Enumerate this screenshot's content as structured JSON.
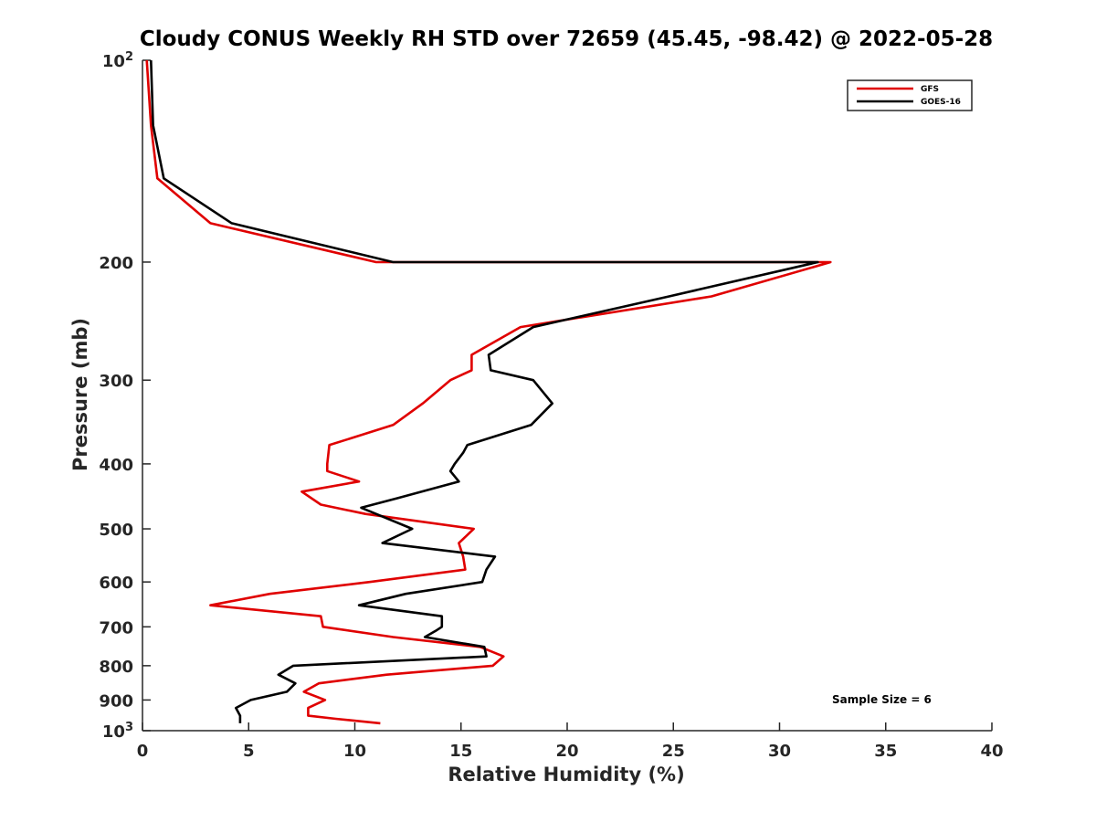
{
  "chart_data": {
    "type": "line",
    "title": "Cloudy CONUS Weekly RH STD over 72659 (45.45, -98.42) @ 2022-05-28",
    "xlabel": "Relative Humidity (%)",
    "ylabel": "Pressure (mb)",
    "xlim": [
      0,
      40
    ],
    "ylim": [
      100,
      1000
    ],
    "y_scale": "log",
    "y_reversed": true,
    "x_ticks": [
      "0",
      "5",
      "10",
      "15",
      "20",
      "25",
      "30",
      "35",
      "40"
    ],
    "y_ticks": [
      {
        "value": 100,
        "base": "10",
        "exp": "2"
      },
      {
        "value": 200,
        "label": "200"
      },
      {
        "value": 300,
        "label": "300"
      },
      {
        "value": 400,
        "label": "400"
      },
      {
        "value": 500,
        "label": "500"
      },
      {
        "value": 600,
        "label": "600"
      },
      {
        "value": 700,
        "label": "700"
      },
      {
        "value": 800,
        "label": "800"
      },
      {
        "value": 900,
        "label": "900"
      },
      {
        "value": 1000,
        "base": "10",
        "exp": "3"
      }
    ],
    "grid": false,
    "legend_position": "top-right",
    "annotation": "Sample Size = 6",
    "series": [
      {
        "name": "GFS",
        "color": "#e00000",
        "points": [
          [
            0.2,
            100
          ],
          [
            0.4,
            125
          ],
          [
            0.7,
            150
          ],
          [
            3.2,
            175
          ],
          [
            11.0,
            200
          ],
          [
            32.4,
            200
          ],
          [
            26.8,
            225
          ],
          [
            17.8,
            250
          ],
          [
            15.5,
            275
          ],
          [
            15.5,
            290
          ],
          [
            14.5,
            300
          ],
          [
            13.2,
            325
          ],
          [
            11.8,
            350
          ],
          [
            8.8,
            375
          ],
          [
            8.7,
            400
          ],
          [
            8.7,
            410
          ],
          [
            10.2,
            425
          ],
          [
            7.5,
            440
          ],
          [
            8.4,
            460
          ],
          [
            10.5,
            475
          ],
          [
            15.6,
            500
          ],
          [
            14.9,
            525
          ],
          [
            15.1,
            550
          ],
          [
            15.2,
            575
          ],
          [
            10.7,
            600
          ],
          [
            6.0,
            625
          ],
          [
            3.2,
            650
          ],
          [
            8.4,
            675
          ],
          [
            8.5,
            700
          ],
          [
            11.8,
            725
          ],
          [
            15.9,
            750
          ],
          [
            17.0,
            775
          ],
          [
            16.5,
            800
          ],
          [
            11.5,
            825
          ],
          [
            8.3,
            850
          ],
          [
            7.6,
            875
          ],
          [
            8.6,
            900
          ],
          [
            7.8,
            925
          ],
          [
            7.8,
            950
          ],
          [
            9.1,
            960
          ],
          [
            11.2,
            975
          ]
        ]
      },
      {
        "name": "GOES-16",
        "color": "#000000",
        "points": [
          [
            0.4,
            100
          ],
          [
            0.5,
            125
          ],
          [
            1.0,
            150
          ],
          [
            4.2,
            175
          ],
          [
            11.8,
            200
          ],
          [
            31.8,
            200
          ],
          [
            24.8,
            225
          ],
          [
            18.4,
            250
          ],
          [
            16.3,
            275
          ],
          [
            16.4,
            290
          ],
          [
            18.4,
            300
          ],
          [
            19.3,
            325
          ],
          [
            18.3,
            350
          ],
          [
            15.3,
            375
          ],
          [
            15.1,
            385
          ],
          [
            14.7,
            400
          ],
          [
            14.5,
            410
          ],
          [
            14.9,
            425
          ],
          [
            12.0,
            450
          ],
          [
            10.3,
            465
          ],
          [
            11.0,
            475
          ],
          [
            12.7,
            500
          ],
          [
            11.3,
            525
          ],
          [
            16.6,
            550
          ],
          [
            16.2,
            575
          ],
          [
            16.0,
            600
          ],
          [
            12.4,
            625
          ],
          [
            10.2,
            650
          ],
          [
            14.1,
            675
          ],
          [
            14.1,
            700
          ],
          [
            13.8,
            710
          ],
          [
            13.3,
            725
          ],
          [
            16.1,
            750
          ],
          [
            16.2,
            775
          ],
          [
            7.1,
            800
          ],
          [
            6.4,
            825
          ],
          [
            7.2,
            850
          ],
          [
            6.8,
            875
          ],
          [
            5.1,
            900
          ],
          [
            4.4,
            925
          ],
          [
            4.6,
            950
          ],
          [
            4.6,
            975
          ]
        ]
      }
    ]
  }
}
